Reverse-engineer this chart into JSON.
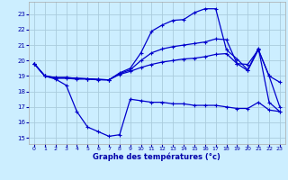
{
  "title": "Graphe des températures (°c)",
  "background_color": "#cceeff",
  "line_color": "#0000cc",
  "grid_color": "#aaccdd",
  "x_ticks": [
    0,
    1,
    2,
    3,
    4,
    5,
    6,
    7,
    8,
    9,
    10,
    11,
    12,
    13,
    14,
    15,
    16,
    17,
    18,
    19,
    20,
    21,
    22,
    23
  ],
  "y_ticks": [
    15,
    16,
    17,
    18,
    19,
    20,
    21,
    22,
    23
  ],
  "xlim": [
    -0.5,
    23.5
  ],
  "ylim": [
    14.6,
    23.8
  ],
  "line1_y": [
    19.8,
    19.0,
    18.8,
    18.4,
    16.7,
    15.7,
    15.4,
    15.1,
    15.2,
    17.5,
    17.4,
    17.3,
    17.3,
    17.2,
    17.2,
    17.1,
    17.1,
    17.1,
    17.0,
    16.9,
    16.9,
    17.3,
    16.8,
    16.7
  ],
  "line2_y": [
    19.8,
    19.0,
    18.9,
    18.9,
    18.85,
    18.82,
    18.78,
    18.75,
    19.1,
    19.3,
    19.55,
    19.75,
    19.9,
    20.0,
    20.1,
    20.15,
    20.25,
    20.4,
    20.45,
    19.8,
    19.75,
    20.7,
    19.0,
    18.6
  ],
  "line3_y": [
    19.8,
    19.0,
    18.9,
    18.9,
    18.85,
    18.82,
    18.78,
    18.75,
    19.15,
    19.4,
    20.0,
    20.5,
    20.75,
    20.9,
    21.0,
    21.1,
    21.2,
    21.4,
    21.35,
    19.8,
    19.35,
    20.7,
    19.0,
    17.0
  ],
  "line4_y": [
    19.8,
    19.0,
    18.85,
    18.85,
    18.8,
    18.8,
    18.75,
    18.75,
    19.2,
    19.5,
    20.5,
    21.9,
    22.3,
    22.6,
    22.65,
    23.1,
    23.35,
    23.35,
    20.7,
    20.1,
    19.4,
    20.8,
    17.3,
    16.7
  ]
}
